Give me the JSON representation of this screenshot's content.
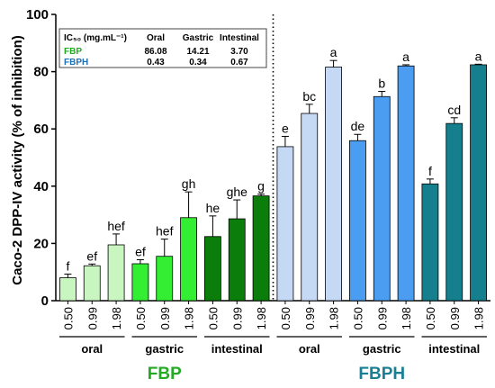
{
  "chart_data": {
    "type": "bar",
    "ylabel": "Caco-2 DPP-IV activity (% of inhibition)",
    "ylim": [
      0,
      100
    ],
    "yticks": [
      0,
      20,
      40,
      60,
      80,
      100
    ],
    "categories": [
      "0.50",
      "0.99",
      "1.98",
      "0.50",
      "0.99",
      "1.98",
      "0.50",
      "0.99",
      "1.98",
      "0.50",
      "0.99",
      "1.98",
      "0.50",
      "0.99",
      "1.98",
      "0.50",
      "0.99",
      "1.98"
    ],
    "values": [
      8.0,
      12.2,
      19.5,
      12.9,
      15.5,
      29.0,
      22.4,
      28.6,
      36.6,
      53.8,
      65.4,
      81.6,
      55.9,
      71.3,
      82.0,
      40.8,
      61.9,
      82.4
    ],
    "errors": [
      1.3,
      0.6,
      3.8,
      1.4,
      6.0,
      9.0,
      7.2,
      6.6,
      0.6,
      3.6,
      3.2,
      2.3,
      2.2,
      1.8,
      0.4,
      1.7,
      2.0,
      0.2
    ],
    "letters": [
      "f",
      "ef",
      "hef",
      "ef",
      "hef",
      "gh",
      "he",
      "ghe",
      "g",
      "e",
      "bc",
      "a",
      "de",
      "b",
      "a",
      "f",
      "cd",
      "a"
    ],
    "bar_colors": [
      "#c8f5c0",
      "#c8f5c0",
      "#c8f5c0",
      "#33ee33",
      "#33ee33",
      "#33ee33",
      "#0a7d0a",
      "#0a7d0a",
      "#0a7d0a",
      "#c5d9f5",
      "#c5d9f5",
      "#c5d9f5",
      "#4a9df0",
      "#4a9df0",
      "#4a9df0",
      "#157f8e",
      "#157f8e",
      "#157f8e"
    ],
    "groups": [
      {
        "label": "oral",
        "start": 0,
        "end": 2
      },
      {
        "label": "gastric",
        "start": 3,
        "end": 5
      },
      {
        "label": "intestinal",
        "start": 6,
        "end": 8
      },
      {
        "label": "oral",
        "start": 9,
        "end": 11
      },
      {
        "label": "gastric",
        "start": 12,
        "end": 14
      },
      {
        "label": "intestinal",
        "start": 15,
        "end": 17
      }
    ],
    "samples": [
      {
        "label": "FBP",
        "color": "#22aa22",
        "start": 0,
        "end": 8
      },
      {
        "label": "FBPH",
        "color": "#1a7f93",
        "start": 9,
        "end": 17
      }
    ],
    "inset_table": {
      "header": [
        "IC₅₀ (mg.mL⁻¹)",
        "Oral",
        "Gastric",
        "Intestinal"
      ],
      "rows": [
        {
          "name": "FBP",
          "name_color": "#22aa22",
          "values": [
            "86.08",
            "14.21",
            "3.70"
          ]
        },
        {
          "name": "FBPH",
          "name_color": "#1f6fb4",
          "values": [
            "0.43",
            "0.34",
            "0.67"
          ]
        }
      ]
    }
  }
}
